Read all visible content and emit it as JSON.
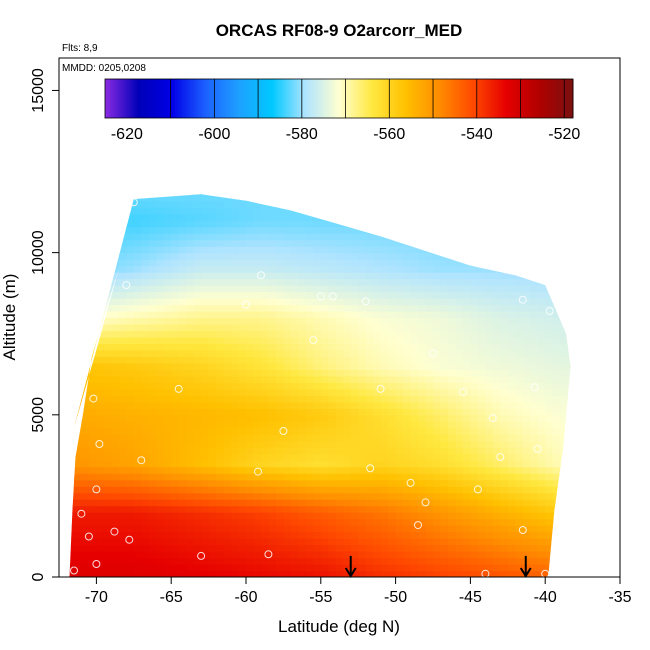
{
  "chart_data": {
    "type": "heatmap",
    "title": "ORCAS RF08-9 O2arcorr_MED",
    "annotations": [
      "Flts: 8,9",
      "MMDD: 0205,0208"
    ],
    "xlabel": "Latitude (deg N)",
    "ylabel": "Altitude (m)",
    "xlim": [
      -72.5,
      -35
    ],
    "ylim": [
      0,
      16000
    ],
    "x_ticks": [
      -70,
      -65,
      -60,
      -55,
      -50,
      -45,
      -40,
      -35
    ],
    "x_tick_labels": [
      "-70",
      "-65",
      "-60",
      "-55",
      "-50",
      "-45",
      "-40",
      "-35"
    ],
    "y_ticks": [
      0,
      5000,
      10000,
      15000
    ],
    "y_tick_labels": [
      "0",
      "5000",
      "10000",
      "15000"
    ],
    "colorbar": {
      "range": [
        -625,
        -518
      ],
      "ticks": [
        -620,
        -600,
        -580,
        -560,
        -540,
        -520
      ],
      "tick_labels": [
        "-620",
        "-600",
        "-580",
        "-560",
        "-540",
        "-520"
      ],
      "colors": [
        "#8a2be2",
        "#0000b8",
        "#0000e6",
        "#1c60ff",
        "#1ea0ff",
        "#00c8ff",
        "#b0e4ff",
        "#ffffd0",
        "#ffe840",
        "#ffc000",
        "#ff8c00",
        "#ff4a00",
        "#e60000",
        "#b00000",
        "#7a1010"
      ],
      "cut_values": [
        -610,
        -600,
        -590,
        -580,
        -570,
        -560,
        -550,
        -540,
        -530,
        -520
      ]
    },
    "field_rows": [
      {
        "alt": 0,
        "values": [
          -532,
          -532,
          -533,
          -534,
          -535,
          -538,
          -540,
          -542,
          -544
        ]
      },
      {
        "alt": 2000,
        "values": [
          -536,
          -536,
          -538,
          -540,
          -543,
          -546,
          -550,
          -554,
          -558
        ]
      },
      {
        "alt": 3500,
        "values": [
          -550,
          -552,
          -556,
          -560,
          -562,
          -560,
          -562,
          -566,
          -570
        ]
      },
      {
        "alt": 5000,
        "values": [
          -553,
          -554,
          -555,
          -556,
          -558,
          -562,
          -566,
          -570,
          -572
        ]
      },
      {
        "alt": 6500,
        "values": [
          -557,
          -558,
          -560,
          -563,
          -567,
          -570,
          -572,
          -573,
          -574
        ]
      },
      {
        "alt": 8000,
        "values": [
          -572,
          -570,
          -568,
          -568,
          -570,
          -572,
          -573,
          -575,
          -576
        ]
      },
      {
        "alt": 9500,
        "values": [
          -582,
          -580,
          -577,
          -577,
          -578,
          -579,
          -580,
          -580,
          -580
        ]
      },
      {
        "alt": 11000,
        "values": [
          -584,
          -584,
          -583,
          -582,
          -582,
          -582,
          -582,
          -582,
          -582
        ]
      },
      {
        "alt": 12000,
        "values": [
          -582,
          -582,
          -582,
          -582,
          -582,
          -582,
          -582,
          -582,
          -582
        ]
      }
    ],
    "field_x": [
      -71.5,
      -67.5,
      -63,
      -59,
      -55,
      -51,
      -47,
      -43,
      -39
    ],
    "coverage": {
      "top_lat": [
        -71.5,
        -70,
        -68.5,
        -67.5,
        -66,
        -63,
        -60,
        -57,
        -54,
        -51,
        -48,
        -45,
        -42,
        -40,
        -38.6
      ],
      "top_alt": [
        4600,
        7000,
        9500,
        11650,
        11700,
        11800,
        11600,
        11300,
        10900,
        10500,
        10050,
        9600,
        9300,
        9000,
        7500
      ],
      "left_lat": [
        -71.8,
        -71.6,
        -71.4,
        -70.9,
        -70.3,
        -69.4,
        -68.5,
        -67.5
      ],
      "left_alt": [
        0,
        2100,
        3700,
        5000,
        6800,
        8200,
        9500,
        11650
      ],
      "right_lat": [
        -38.6,
        -38.3,
        -38.8,
        -39.4,
        -39.8
      ],
      "right_alt": [
        7500,
        6500,
        4000,
        2000,
        0
      ]
    },
    "flight_points": {
      "lat": [
        -67.5,
        -68.0,
        -70.2,
        -71.5,
        -70.0,
        -68.8,
        -67.8,
        -70.5,
        -71.0,
        -69.8,
        -70.0,
        -67.0,
        -64.5,
        -63.0,
        -59.2,
        -60.0,
        -59.0,
        -58.5,
        -57.5,
        -55.0,
        -54.2,
        -52.0,
        -51.0,
        -48.0,
        -47.5,
        -49.0,
        -48.5,
        -45.5,
        -44.0,
        -44.5,
        -43.5,
        -43.0,
        -41.5,
        -40.5,
        -40.0,
        -40.7,
        -39.7,
        -41.5,
        -51.7,
        -55.5
      ],
      "alt": [
        11550,
        9000,
        5500,
        200,
        400,
        1400,
        1150,
        1250,
        1950,
        4100,
        2700,
        3600,
        5800,
        650,
        3250,
        8400,
        9300,
        700,
        4500,
        8650,
        8650,
        8500,
        5800,
        2300,
        6900,
        2900,
        1600,
        5700,
        100,
        2700,
        4900,
        3700,
        1450,
        3950,
        100,
        5850,
        8200,
        8550,
        3350,
        7300
      ]
    },
    "arrows_lat": [
      -53.0,
      -41.3
    ]
  }
}
